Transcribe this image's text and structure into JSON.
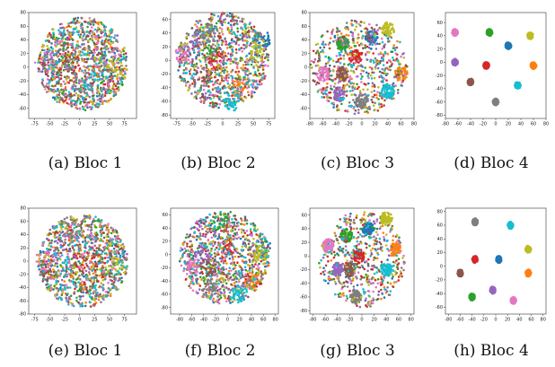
{
  "chart_data": [
    {
      "type": "scatter",
      "caption": "(a) Bloc 1",
      "xlim": [
        -85,
        95
      ],
      "ylim": [
        -75,
        80
      ],
      "xticks": [
        -75,
        -50,
        -25,
        0,
        25,
        50,
        75
      ],
      "yticks": [
        -60,
        -40,
        -20,
        0,
        20,
        40,
        60,
        80
      ],
      "separation": 0.12,
      "hull": {
        "cx": 5,
        "cy": 5,
        "rx": 75,
        "ry": 68
      },
      "clusters": [
        {
          "color": "#1f77b4",
          "x": 55,
          "y": 10
        },
        {
          "color": "#ff7f0e",
          "x": 25,
          "y": 0
        },
        {
          "color": "#2ca02c",
          "x": -20,
          "y": 20
        },
        {
          "color": "#d62728",
          "x": -10,
          "y": 5
        },
        {
          "color": "#9467bd",
          "x": -50,
          "y": 10
        },
        {
          "color": "#8c564b",
          "x": -40,
          "y": -10
        },
        {
          "color": "#e377c2",
          "x": -60,
          "y": 5
        },
        {
          "color": "#7f7f7f",
          "x": 0,
          "y": -30
        },
        {
          "color": "#bcbd22",
          "x": 60,
          "y": 0
        },
        {
          "color": "#17becf",
          "x": 20,
          "y": -20
        }
      ]
    },
    {
      "type": "scatter",
      "caption": "(b) Bloc 2",
      "xlim": [
        -85,
        85
      ],
      "ylim": [
        -85,
        70
      ],
      "xticks": [
        -75,
        -50,
        -25,
        0,
        25,
        50,
        75
      ],
      "yticks": [
        -80,
        -60,
        -40,
        -20,
        0,
        20,
        40,
        60
      ],
      "separation": 0.28,
      "hull": {
        "cx": 0,
        "cy": 0,
        "rx": 75,
        "ry": 70
      },
      "clusters": [
        {
          "color": "#1f77b4",
          "x": 65,
          "y": 30
        },
        {
          "color": "#ff7f0e",
          "x": 25,
          "y": -40
        },
        {
          "color": "#2ca02c",
          "x": -20,
          "y": 10
        },
        {
          "color": "#d62728",
          "x": -10,
          "y": 0
        },
        {
          "color": "#9467bd",
          "x": -40,
          "y": 30
        },
        {
          "color": "#8c564b",
          "x": -30,
          "y": -20
        },
        {
          "color": "#e377c2",
          "x": -65,
          "y": 10
        },
        {
          "color": "#7f7f7f",
          "x": -20,
          "y": 40
        },
        {
          "color": "#bcbd22",
          "x": 55,
          "y": 10
        },
        {
          "color": "#17becf",
          "x": 15,
          "y": -60
        }
      ]
    },
    {
      "type": "scatter",
      "caption": "(c) Bloc 3",
      "xlim": [
        -80,
        80
      ],
      "ylim": [
        -75,
        80
      ],
      "xticks": [
        -80,
        -60,
        -40,
        -20,
        0,
        20,
        40,
        60,
        80
      ],
      "yticks": [
        -60,
        -40,
        -20,
        0,
        20,
        40,
        60,
        80
      ],
      "separation": 0.55,
      "hull": {
        "cx": -5,
        "cy": 0,
        "rx": 75,
        "ry": 70
      },
      "clusters": [
        {
          "color": "#1f77b4",
          "x": 15,
          "y": 45
        },
        {
          "color": "#ff7f0e",
          "x": 60,
          "y": -10
        },
        {
          "color": "#2ca02c",
          "x": -30,
          "y": 35
        },
        {
          "color": "#d62728",
          "x": -10,
          "y": 15
        },
        {
          "color": "#9467bd",
          "x": -35,
          "y": -40
        },
        {
          "color": "#8c564b",
          "x": -30,
          "y": -10
        },
        {
          "color": "#e377c2",
          "x": -60,
          "y": -10
        },
        {
          "color": "#7f7f7f",
          "x": 0,
          "y": -50
        },
        {
          "color": "#bcbd22",
          "x": 40,
          "y": 55
        },
        {
          "color": "#17becf",
          "x": 40,
          "y": -35
        }
      ]
    },
    {
      "type": "scatter",
      "caption": "(d) Bloc 4",
      "xlim": [
        -80,
        80
      ],
      "ylim": [
        -85,
        75
      ],
      "xticks": [
        -80,
        -60,
        -40,
        -20,
        0,
        20,
        40,
        60,
        80
      ],
      "yticks": [
        -80,
        -60,
        -40,
        -20,
        0,
        20,
        40,
        60
      ],
      "separation": 1.0,
      "hull": {
        "cx": 0,
        "cy": 0,
        "rx": 70,
        "ry": 70
      },
      "clusters": [
        {
          "color": "#1f77b4",
          "x": 20,
          "y": 25
        },
        {
          "color": "#ff7f0e",
          "x": 60,
          "y": -5
        },
        {
          "color": "#2ca02c",
          "x": -10,
          "y": 45
        },
        {
          "color": "#d62728",
          "x": -15,
          "y": -5
        },
        {
          "color": "#9467bd",
          "x": -65,
          "y": 0
        },
        {
          "color": "#8c564b",
          "x": -40,
          "y": -30
        },
        {
          "color": "#e377c2",
          "x": -65,
          "y": 45
        },
        {
          "color": "#7f7f7f",
          "x": 0,
          "y": -60
        },
        {
          "color": "#bcbd22",
          "x": 55,
          "y": 40
        },
        {
          "color": "#17becf",
          "x": 35,
          "y": -35
        }
      ]
    },
    {
      "type": "scatter",
      "caption": "(e) Bloc 1",
      "xlim": [
        -85,
        95
      ],
      "ylim": [
        -80,
        80
      ],
      "xticks": [
        -75,
        -50,
        -25,
        0,
        25,
        50,
        75
      ],
      "yticks": [
        -80,
        -60,
        -40,
        -20,
        0,
        20,
        40,
        60,
        80
      ],
      "separation": 0.12,
      "hull": {
        "cx": 5,
        "cy": 0,
        "rx": 75,
        "ry": 70
      },
      "clusters": [
        {
          "color": "#1f77b4",
          "x": 60,
          "y": 10
        },
        {
          "color": "#ff7f0e",
          "x": 30,
          "y": -20
        },
        {
          "color": "#2ca02c",
          "x": -10,
          "y": 30
        },
        {
          "color": "#d62728",
          "x": 0,
          "y": 0
        },
        {
          "color": "#9467bd",
          "x": -40,
          "y": 20
        },
        {
          "color": "#8c564b",
          "x": -50,
          "y": -20
        },
        {
          "color": "#e377c2",
          "x": -60,
          "y": 0
        },
        {
          "color": "#7f7f7f",
          "x": -20,
          "y": 50
        },
        {
          "color": "#bcbd22",
          "x": 60,
          "y": -10
        },
        {
          "color": "#17becf",
          "x": 30,
          "y": -50
        }
      ]
    },
    {
      "type": "scatter",
      "caption": "(f) Bloc 2",
      "xlim": [
        -95,
        85
      ],
      "ylim": [
        -90,
        70
      ],
      "xticks": [
        -80,
        -60,
        -40,
        -20,
        0,
        20,
        40,
        60,
        80
      ],
      "yticks": [
        -80,
        -60,
        -40,
        -20,
        0,
        20,
        40,
        60
      ],
      "separation": 0.3,
      "hull": {
        "cx": -5,
        "cy": -5,
        "rx": 75,
        "ry": 70
      },
      "clusters": [
        {
          "color": "#1f77b4",
          "x": 60,
          "y": 10
        },
        {
          "color": "#ff7f0e",
          "x": 40,
          "y": -40
        },
        {
          "color": "#2ca02c",
          "x": -10,
          "y": 50
        },
        {
          "color": "#d62728",
          "x": 0,
          "y": 10
        },
        {
          "color": "#9467bd",
          "x": -40,
          "y": 0
        },
        {
          "color": "#8c564b",
          "x": -30,
          "y": -20
        },
        {
          "color": "#e377c2",
          "x": -60,
          "y": -20
        },
        {
          "color": "#7f7f7f",
          "x": -30,
          "y": -50
        },
        {
          "color": "#bcbd22",
          "x": 55,
          "y": 0
        },
        {
          "color": "#17becf",
          "x": 20,
          "y": -60
        }
      ]
    },
    {
      "type": "scatter",
      "caption": "(g) Bloc 3",
      "xlim": [
        -85,
        85
      ],
      "ylim": [
        -85,
        70
      ],
      "xticks": [
        -80,
        -60,
        -40,
        -20,
        0,
        20,
        40,
        60,
        80
      ],
      "yticks": [
        -80,
        -60,
        -40,
        -20,
        0,
        20,
        40,
        60
      ],
      "separation": 0.6,
      "hull": {
        "cx": 0,
        "cy": -5,
        "rx": 70,
        "ry": 70
      },
      "clusters": [
        {
          "color": "#1f77b4",
          "x": 10,
          "y": 40
        },
        {
          "color": "#ff7f0e",
          "x": 55,
          "y": 10
        },
        {
          "color": "#2ca02c",
          "x": -25,
          "y": 30
        },
        {
          "color": "#d62728",
          "x": -5,
          "y": 0
        },
        {
          "color": "#9467bd",
          "x": -40,
          "y": -20
        },
        {
          "color": "#8c564b",
          "x": -20,
          "y": -20
        },
        {
          "color": "#e377c2",
          "x": -55,
          "y": 15
        },
        {
          "color": "#7f7f7f",
          "x": -10,
          "y": -60
        },
        {
          "color": "#bcbd22",
          "x": 40,
          "y": 55
        },
        {
          "color": "#17becf",
          "x": 40,
          "y": -20
        }
      ]
    },
    {
      "type": "scatter",
      "caption": "(h) Bloc 4",
      "xlim": [
        -85,
        85
      ],
      "ylim": [
        -70,
        85
      ],
      "xticks": [
        -80,
        -60,
        -40,
        -20,
        0,
        20,
        40,
        60,
        80
      ],
      "yticks": [
        -60,
        -40,
        -20,
        0,
        20,
        40,
        60,
        80
      ],
      "separation": 1.0,
      "hull": {
        "cx": 0,
        "cy": 0,
        "rx": 70,
        "ry": 70
      },
      "clusters": [
        {
          "color": "#1f77b4",
          "x": 5,
          "y": 10
        },
        {
          "color": "#ff7f0e",
          "x": 55,
          "y": -10
        },
        {
          "color": "#2ca02c",
          "x": -40,
          "y": -45
        },
        {
          "color": "#d62728",
          "x": -35,
          "y": 10
        },
        {
          "color": "#9467bd",
          "x": -5,
          "y": -35
        },
        {
          "color": "#8c564b",
          "x": -60,
          "y": -10
        },
        {
          "color": "#e377c2",
          "x": 30,
          "y": -50
        },
        {
          "color": "#7f7f7f",
          "x": -35,
          "y": 65
        },
        {
          "color": "#bcbd22",
          "x": 55,
          "y": 25
        },
        {
          "color": "#17becf",
          "x": 25,
          "y": 60
        }
      ]
    }
  ]
}
